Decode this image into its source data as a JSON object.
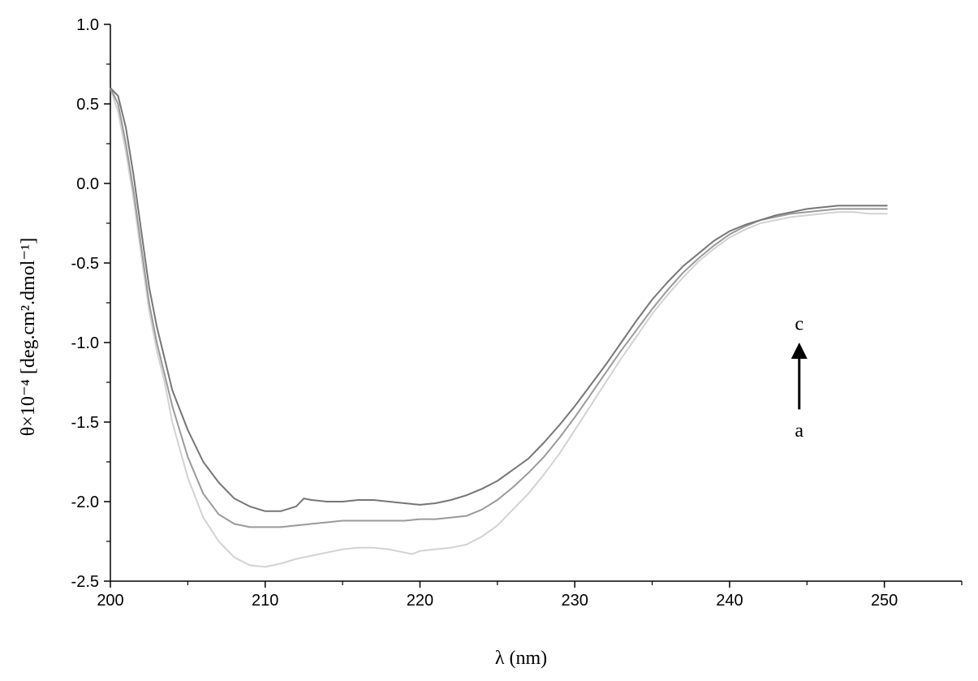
{
  "chart_data": {
    "type": "line",
    "xlabel": "λ (nm)",
    "ylabel": "θ×10⁻⁴ [deg.cm².dmol⁻¹]",
    "xlim": [
      200,
      255
    ],
    "ylim": [
      -2.5,
      1.0
    ],
    "xticks": [
      "200",
      "210",
      "220",
      "230",
      "240",
      "250"
    ],
    "yticks": [
      "1.0",
      "0.5",
      "0.0",
      "-0.5",
      "-1.0",
      "-1.5",
      "-2.0",
      "-2.5"
    ],
    "grid": false,
    "series": [
      {
        "color": "#d2d2d2",
        "x": [
          200,
          200.5,
          201,
          201.5,
          202,
          202.5,
          203,
          203.5,
          204,
          205,
          206,
          207,
          208,
          209,
          210,
          211,
          212,
          213,
          214,
          215,
          216,
          217,
          218,
          219,
          219.5,
          220,
          221,
          222,
          223,
          224,
          225,
          226,
          227,
          228,
          229,
          230,
          231,
          232,
          233,
          234,
          235,
          236,
          237,
          238,
          239,
          240,
          241,
          242,
          243,
          244,
          245,
          246,
          247,
          248,
          249,
          250.2
        ],
        "y": [
          0.6,
          0.45,
          0.2,
          -0.1,
          -0.45,
          -0.8,
          -1.05,
          -1.25,
          -1.5,
          -1.85,
          -2.1,
          -2.25,
          -2.35,
          -2.4,
          -2.41,
          -2.39,
          -2.36,
          -2.34,
          -2.32,
          -2.3,
          -2.29,
          -2.29,
          -2.3,
          -2.32,
          -2.33,
          -2.31,
          -2.3,
          -2.29,
          -2.27,
          -2.22,
          -2.15,
          -2.05,
          -1.95,
          -1.83,
          -1.7,
          -1.55,
          -1.4,
          -1.25,
          -1.1,
          -0.96,
          -0.82,
          -0.7,
          -0.59,
          -0.49,
          -0.41,
          -0.34,
          -0.29,
          -0.25,
          -0.23,
          -0.21,
          -0.2,
          -0.19,
          -0.18,
          -0.18,
          -0.19,
          -0.19
        ]
      },
      {
        "color": "#9a9a9a",
        "x": [
          200,
          200.5,
          201,
          201.5,
          202,
          202.5,
          203,
          203.5,
          204,
          205,
          206,
          207,
          208,
          209,
          210,
          211,
          212,
          213,
          214,
          215,
          216,
          217,
          218,
          219,
          220,
          221,
          222,
          223,
          224,
          225,
          226,
          227,
          228,
          229,
          230,
          231,
          232,
          233,
          234,
          235,
          236,
          237,
          238,
          239,
          240,
          241,
          242,
          243,
          244,
          245,
          246,
          247,
          248,
          249,
          250.2
        ],
        "y": [
          0.6,
          0.5,
          0.25,
          -0.05,
          -0.4,
          -0.75,
          -1.0,
          -1.2,
          -1.4,
          -1.72,
          -1.95,
          -2.08,
          -2.14,
          -2.16,
          -2.16,
          -2.16,
          -2.15,
          -2.14,
          -2.13,
          -2.12,
          -2.12,
          -2.12,
          -2.12,
          -2.12,
          -2.11,
          -2.11,
          -2.1,
          -2.09,
          -2.05,
          -1.99,
          -1.91,
          -1.82,
          -1.72,
          -1.6,
          -1.47,
          -1.33,
          -1.19,
          -1.05,
          -0.92,
          -0.79,
          -0.67,
          -0.56,
          -0.47,
          -0.39,
          -0.32,
          -0.27,
          -0.23,
          -0.21,
          -0.19,
          -0.18,
          -0.17,
          -0.16,
          -0.16,
          -0.16,
          -0.16
        ]
      },
      {
        "color": "#767676",
        "x": [
          200,
          200.5,
          201,
          201.5,
          202,
          202.5,
          203,
          203.5,
          204,
          205,
          206,
          207,
          208,
          209,
          210,
          211,
          212,
          212.5,
          213,
          214,
          215,
          216,
          217,
          218,
          219,
          220,
          221,
          222,
          223,
          224,
          225,
          226,
          227,
          228,
          229,
          230,
          231,
          232,
          233,
          234,
          235,
          236,
          237,
          238,
          239,
          240,
          241,
          242,
          243,
          244,
          245,
          246,
          247,
          248,
          249,
          250.2
        ],
        "y": [
          0.6,
          0.55,
          0.35,
          0.05,
          -0.3,
          -0.65,
          -0.9,
          -1.1,
          -1.3,
          -1.55,
          -1.75,
          -1.88,
          -1.98,
          -2.03,
          -2.06,
          -2.06,
          -2.03,
          -1.98,
          -1.99,
          -2.0,
          -2.0,
          -1.99,
          -1.99,
          -2.0,
          -2.01,
          -2.02,
          -2.01,
          -1.99,
          -1.96,
          -1.92,
          -1.87,
          -1.8,
          -1.73,
          -1.63,
          -1.52,
          -1.4,
          -1.27,
          -1.14,
          -1.0,
          -0.86,
          -0.73,
          -0.62,
          -0.52,
          -0.44,
          -0.36,
          -0.3,
          -0.26,
          -0.23,
          -0.2,
          -0.18,
          -0.16,
          -0.15,
          -0.14,
          -0.14,
          -0.14,
          -0.14
        ]
      }
    ],
    "annotations": [
      {
        "text": "c",
        "x": 244.5,
        "y": -0.88
      },
      {
        "text": "a",
        "x": 244.5,
        "y": -1.55
      }
    ],
    "arrow": {
      "from": [
        244.5,
        -1.42
      ],
      "to": [
        244.5,
        -1.0
      ],
      "direction": "up"
    }
  }
}
